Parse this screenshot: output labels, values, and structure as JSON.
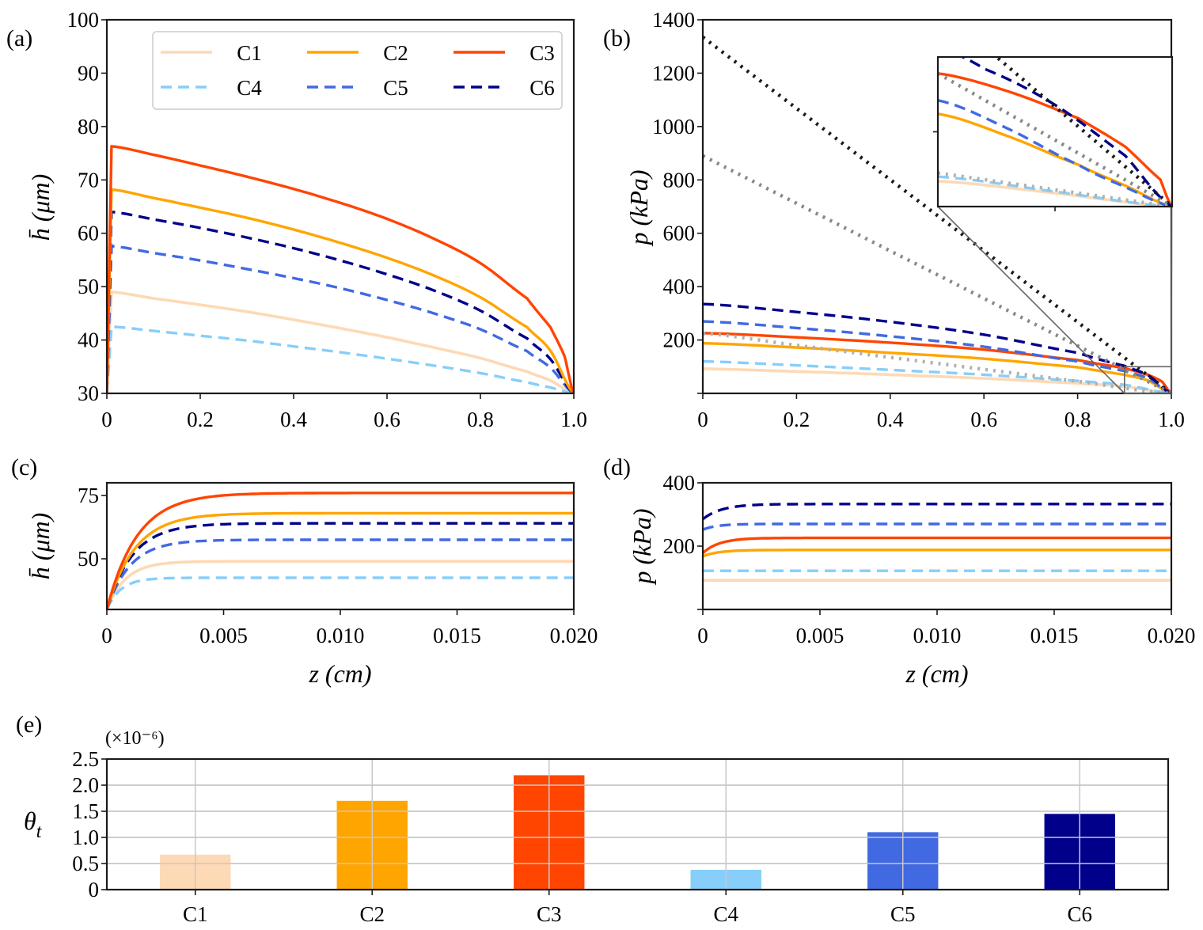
{
  "colors": {
    "C1": "#fdd9b5",
    "C2": "#ffa500",
    "C3": "#ff4500",
    "C4": "#87cefa",
    "C5": "#4169e1",
    "C6": "#00008b",
    "ref_black": "#1a1a1a",
    "ref_gray": "#888888",
    "ref_lightgray": "#b0b0b0",
    "inset_connector": "#666666"
  },
  "chart_data": [
    {
      "id": "a",
      "panel_label": "(a)",
      "type": "line",
      "xlabel": "",
      "ylabel": "h̄ (μm)",
      "xlim": [
        0,
        1.0
      ],
      "ylim": [
        30,
        100
      ],
      "xticks": [
        0,
        0.2,
        0.4,
        0.6,
        0.8,
        1.0
      ],
      "xtick_labels": [
        "0",
        "0.2",
        "0.4",
        "0.6",
        "0.8",
        "1.0"
      ],
      "yticks": [
        30,
        40,
        50,
        60,
        70,
        80,
        90,
        100
      ],
      "ytick_labels": [
        "30",
        "40",
        "50",
        "60",
        "70",
        "80",
        "90",
        "100"
      ],
      "legend": {
        "position": "top-right",
        "columns": 3,
        "entries": [
          "C1",
          "C2",
          "C3",
          "C4",
          "C5",
          "C6"
        ]
      },
      "series": [
        {
          "name": "C1",
          "style": "solid",
          "x": [
            0,
            0.01,
            0.1,
            0.2,
            0.3,
            0.4,
            0.5,
            0.6,
            0.7,
            0.8,
            0.9,
            0.95,
            1.0
          ],
          "y": [
            30,
            49.0,
            47.8,
            46.6,
            45.3,
            43.8,
            42.2,
            40.5,
            38.6,
            36.6,
            34.1,
            32.4,
            30
          ]
        },
        {
          "name": "C2",
          "style": "solid",
          "x": [
            0,
            0.01,
            0.1,
            0.2,
            0.3,
            0.4,
            0.5,
            0.6,
            0.7,
            0.8,
            0.9,
            0.95,
            1.0
          ],
          "y": [
            30,
            68.2,
            66.6,
            64.8,
            62.9,
            60.7,
            58.2,
            55.4,
            52.1,
            48.0,
            42.4,
            38.0,
            30
          ]
        },
        {
          "name": "C3",
          "style": "solid",
          "x": [
            0,
            0.01,
            0.1,
            0.2,
            0.3,
            0.4,
            0.5,
            0.6,
            0.7,
            0.8,
            0.9,
            0.95,
            0.98,
            1.0
          ],
          "y": [
            30,
            76.3,
            74.7,
            72.7,
            70.6,
            68.3,
            65.7,
            62.7,
            59.0,
            54.4,
            47.8,
            42.4,
            37.0,
            30
          ]
        },
        {
          "name": "C4",
          "style": "dashed",
          "x": [
            0,
            0.01,
            0.1,
            0.2,
            0.3,
            0.4,
            0.5,
            0.6,
            0.7,
            0.8,
            0.9,
            0.95,
            1.0
          ],
          "y": [
            30,
            42.5,
            41.7,
            40.8,
            39.9,
            38.8,
            37.7,
            36.5,
            35.2,
            33.8,
            32.1,
            31.1,
            30
          ]
        },
        {
          "name": "C5",
          "style": "dashed",
          "x": [
            0,
            0.01,
            0.1,
            0.2,
            0.3,
            0.4,
            0.5,
            0.6,
            0.7,
            0.8,
            0.9,
            0.95,
            1.0
          ],
          "y": [
            30,
            57.6,
            56.3,
            54.9,
            53.3,
            51.6,
            49.7,
            47.5,
            45.0,
            42.0,
            37.9,
            34.8,
            30
          ]
        },
        {
          "name": "C6",
          "style": "dashed",
          "x": [
            0,
            0.01,
            0.1,
            0.2,
            0.3,
            0.4,
            0.5,
            0.6,
            0.7,
            0.8,
            0.9,
            0.95,
            1.0
          ],
          "y": [
            30,
            64.0,
            62.6,
            61.0,
            59.2,
            57.2,
            54.9,
            52.3,
            49.3,
            45.5,
            40.3,
            36.4,
            30
          ]
        }
      ]
    },
    {
      "id": "b",
      "panel_label": "(b)",
      "type": "line",
      "xlabel": "",
      "ylabel": "p (kPa)",
      "xlim": [
        0,
        1.0
      ],
      "ylim": [
        0,
        1400
      ],
      "xticks": [
        0,
        0.2,
        0.4,
        0.6,
        0.8,
        1.0
      ],
      "xtick_labels": [
        "0",
        "0.2",
        "0.4",
        "0.6",
        "0.8",
        "1.0"
      ],
      "yticks": [
        200,
        400,
        600,
        800,
        1000,
        1200,
        1400
      ],
      "ytick_labels": [
        "200",
        "400",
        "600",
        "800",
        "1000",
        "1200",
        "1400"
      ],
      "series": [
        {
          "name": "C1",
          "style": "solid",
          "x": [
            0,
            0.2,
            0.4,
            0.6,
            0.8,
            0.9,
            1.0
          ],
          "y": [
            92,
            82,
            70,
            56,
            38,
            26,
            0
          ]
        },
        {
          "name": "C2",
          "style": "solid",
          "x": [
            0,
            0.2,
            0.4,
            0.6,
            0.8,
            0.9,
            0.95,
            1.0
          ],
          "y": [
            188,
            172,
            152,
            130,
            98,
            70,
            48,
            0
          ]
        },
        {
          "name": "C3",
          "style": "solid",
          "x": [
            0,
            0.2,
            0.4,
            0.6,
            0.8,
            0.9,
            0.95,
            0.98,
            1.0
          ],
          "y": [
            226,
            210,
            190,
            164,
            125,
            95,
            70,
            44,
            0
          ]
        },
        {
          "name": "C4",
          "style": "dashed",
          "x": [
            0,
            0.2,
            0.4,
            0.6,
            0.8,
            0.9,
            1.0
          ],
          "y": [
            120,
            105,
            88,
            70,
            47,
            32,
            0
          ]
        },
        {
          "name": "C5",
          "style": "dashed",
          "x": [
            0,
            0.2,
            0.4,
            0.6,
            0.8,
            0.9,
            0.95,
            1.0
          ],
          "y": [
            270,
            245,
            214,
            175,
            120,
            84,
            56,
            0
          ]
        },
        {
          "name": "C6",
          "style": "dashed",
          "x": [
            0,
            0.2,
            0.4,
            0.6,
            0.8,
            0.9,
            0.95,
            1.0
          ],
          "y": [
            335,
            305,
            268,
            220,
            152,
            103,
            68,
            0
          ]
        },
        {
          "name": "ref-black",
          "style": "dotted",
          "x": [
            0,
            1.0
          ],
          "y": [
            1335,
            0
          ]
        },
        {
          "name": "ref-gray",
          "style": "dotted",
          "x": [
            0,
            1.0
          ],
          "y": [
            890,
            0
          ]
        },
        {
          "name": "ref-lightgray",
          "style": "dotted",
          "x": [
            0,
            0.2,
            0.4,
            0.6,
            0.8,
            1.0
          ],
          "y": [
            225,
            180,
            135,
            90,
            45,
            0
          ]
        }
      ],
      "inset": {
        "xlim": [
          0.9,
          1.0
        ],
        "ylim": [
          0,
          100
        ],
        "xticks": [
          0.95
        ],
        "yticks": [
          50
        ],
        "zoom_region": {
          "x": [
            0.9,
            1.0
          ],
          "y": [
            0,
            100
          ]
        },
        "series": [
          {
            "name": "C1",
            "style": "solid",
            "x": [
              0.9,
              0.95,
              1.0
            ],
            "y": [
              17,
              9,
              0
            ]
          },
          {
            "name": "C2",
            "style": "solid",
            "x": [
              0.9,
              0.93,
              0.96,
              0.98,
              1.0
            ],
            "y": [
              62,
              47,
              28,
              14,
              0
            ]
          },
          {
            "name": "C3",
            "style": "solid",
            "x": [
              0.9,
              0.93,
              0.96,
              0.98,
              0.995,
              1.0
            ],
            "y": [
              89,
              77,
              59,
              40,
              18,
              0
            ]
          },
          {
            "name": "C4",
            "style": "dashed",
            "x": [
              0.9,
              0.95,
              1.0
            ],
            "y": [
              20,
              10,
              0
            ]
          },
          {
            "name": "C5",
            "style": "dashed",
            "x": [
              0.9,
              0.93,
              0.96,
              0.98,
              1.0
            ],
            "y": [
              71,
              52,
              28,
              13,
              0
            ]
          },
          {
            "name": "C6",
            "style": "dashed",
            "x": [
              0.9,
              0.92,
              0.95,
              0.98,
              1.0
            ],
            "y": [
              106,
              92,
              68,
              34,
              0
            ]
          },
          {
            "name": "ref-black",
            "style": "dotted",
            "x": [
              0.9,
              1.0
            ],
            "y": [
              133.5,
              0
            ]
          },
          {
            "name": "ref-gray",
            "style": "dotted",
            "x": [
              0.9,
              1.0
            ],
            "y": [
              89,
              0
            ]
          },
          {
            "name": "ref-lightgray",
            "style": "dotted",
            "x": [
              0.9,
              1.0
            ],
            "y": [
              22.5,
              0
            ]
          }
        ]
      }
    },
    {
      "id": "c",
      "panel_label": "(c)",
      "type": "line",
      "xlabel": "z (cm)",
      "ylabel": "h̄ (μm)",
      "xlim": [
        0,
        0.02
      ],
      "ylim": [
        30,
        80
      ],
      "xticks": [
        0,
        0.005,
        0.01,
        0.015,
        0.02
      ],
      "xtick_labels": [
        "0",
        "0.005",
        "0.010",
        "0.015",
        "0.020"
      ],
      "yticks": [
        50,
        75
      ],
      "ytick_labels": [
        "50",
        "75"
      ],
      "series": [
        {
          "name": "C1",
          "style": "solid",
          "plateau": 49.0,
          "tau": 0.0008
        },
        {
          "name": "C2",
          "style": "solid",
          "plateau": 68.0,
          "tau": 0.0012
        },
        {
          "name": "C3",
          "style": "solid",
          "plateau": 76.0,
          "tau": 0.0013
        },
        {
          "name": "C4",
          "style": "dashed",
          "plateau": 42.5,
          "tau": 0.0006
        },
        {
          "name": "C5",
          "style": "dashed",
          "plateau": 57.5,
          "tau": 0.001
        },
        {
          "name": "C6",
          "style": "dashed",
          "plateau": 64.0,
          "tau": 0.0011
        }
      ]
    },
    {
      "id": "d",
      "panel_label": "(d)",
      "type": "line",
      "xlabel": "z (cm)",
      "ylabel": "p (kPa)",
      "xlim": [
        0,
        0.02
      ],
      "ylim": [
        0,
        400
      ],
      "xticks": [
        0,
        0.005,
        0.01,
        0.015,
        0.02
      ],
      "xtick_labels": [
        "0",
        "0.005",
        "0.010",
        "0.015",
        "0.020"
      ],
      "yticks": [
        0,
        200,
        400
      ],
      "ytick_labels": [
        "",
        "200",
        "400"
      ],
      "series": [
        {
          "name": "C1",
          "style": "solid",
          "start": 92,
          "plateau": 92,
          "tau": 0.0005
        },
        {
          "name": "C2",
          "style": "solid",
          "start": 168,
          "plateau": 188,
          "tau": 0.0007
        },
        {
          "name": "C3",
          "style": "solid",
          "start": 178,
          "plateau": 226,
          "tau": 0.0007
        },
        {
          "name": "C4",
          "style": "dashed",
          "start": 122,
          "plateau": 122,
          "tau": 0.0005
        },
        {
          "name": "C5",
          "style": "dashed",
          "start": 252,
          "plateau": 270,
          "tau": 0.0006
        },
        {
          "name": "C6",
          "style": "dashed",
          "start": 285,
          "plateau": 333,
          "tau": 0.0008
        }
      ]
    },
    {
      "id": "e",
      "panel_label": "(e)",
      "type": "bar",
      "title": "",
      "scale_label": "(×10⁻⁶)",
      "xlabel": "",
      "ylabel": "θt",
      "categories": [
        "C1",
        "C2",
        "C3",
        "C4",
        "C5",
        "C6"
      ],
      "values": [
        0.67,
        1.7,
        2.19,
        0.38,
        1.1,
        1.45
      ],
      "ylim": [
        0,
        2.5
      ],
      "yticks": [
        0,
        0.5,
        1.0,
        1.5,
        2.0,
        2.5
      ],
      "ytick_labels": [
        "0",
        "0.5",
        "1.0",
        "1.5",
        "2.0",
        "2.5"
      ],
      "grid": true
    }
  ]
}
